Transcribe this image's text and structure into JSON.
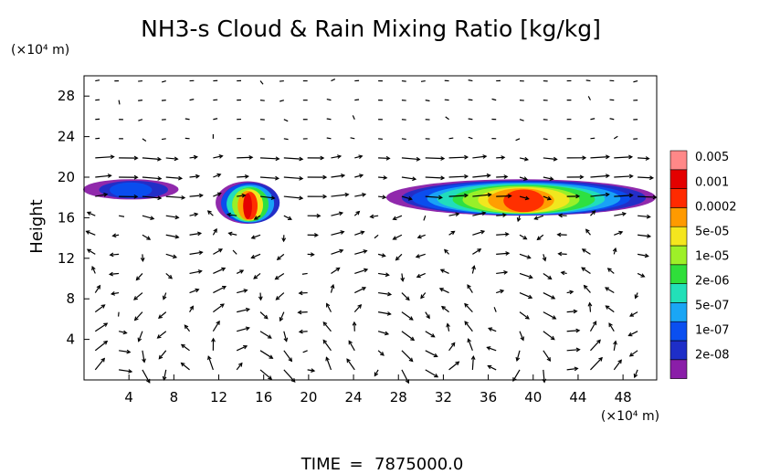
{
  "chart_data": {
    "type": "heatmap",
    "title": "NH3-s Cloud & Rain Mixing Ratio [kg/kg]",
    "xunit": "(×10⁴ m)",
    "yunit": "(×10⁴ m)",
    "ylabel": "Height",
    "xlim": [
      0,
      51
    ],
    "ylim": [
      0,
      30
    ],
    "xticks": [
      4,
      8,
      12,
      16,
      20,
      24,
      28,
      32,
      36,
      40,
      44,
      48
    ],
    "yticks": [
      4,
      8,
      12,
      16,
      20,
      24,
      28
    ],
    "time_label": "TIME",
    "time_value": "7875000.0",
    "colorbar": {
      "colors": [
        "#8a1ea8",
        "#1e2ec8",
        "#0a4ff0",
        "#1aa6f5",
        "#22e0b8",
        "#2fdf3a",
        "#9ef028",
        "#f5e61e",
        "#ff9a00",
        "#ff2a00",
        "#e40000",
        "#ff8888"
      ],
      "labels": [
        "2e-08",
        "1e-07",
        "5e-07",
        "2e-06",
        "1e-05",
        "5e-05",
        "0.0002",
        "0.001",
        "0.005"
      ]
    },
    "cloud_regions": [
      {
        "name": "left-edge cloud",
        "x": [
          0,
          8.5
        ],
        "y": [
          17.8,
          19.8
        ],
        "peak_level": 2
      },
      {
        "name": "central cell",
        "x": [
          11.8,
          17.5
        ],
        "y": [
          15.4,
          19.6
        ],
        "peak_level": 10
      },
      {
        "name": "right cloud band",
        "x": [
          27,
          51
        ],
        "y": [
          16.2,
          19.8
        ],
        "peak_level": 9
      }
    ]
  }
}
